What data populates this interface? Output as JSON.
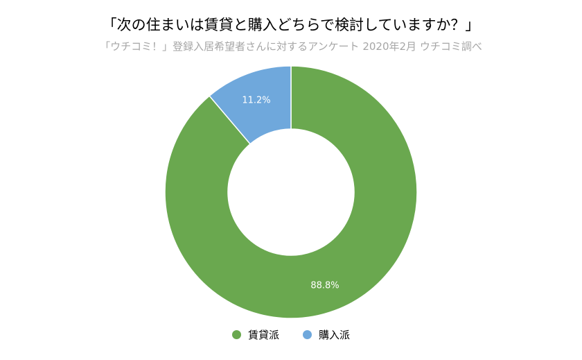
{
  "chart_data": {
    "type": "pie",
    "title": "「次の住まいは賃貸と購入どちらで検討していますか？」",
    "subtitle": "「ウチコミ！」登録入居希望者さんに対するアンケート 2020年2月 ウチコミ調べ",
    "series": [
      {
        "name": "賃貸派",
        "value": 88.8,
        "label": "88.8%",
        "color": "#6aa84f"
      },
      {
        "name": "購入派",
        "value": 11.2,
        "label": "11.2%",
        "color": "#6fa8dc"
      }
    ],
    "legend_position": "bottom"
  }
}
